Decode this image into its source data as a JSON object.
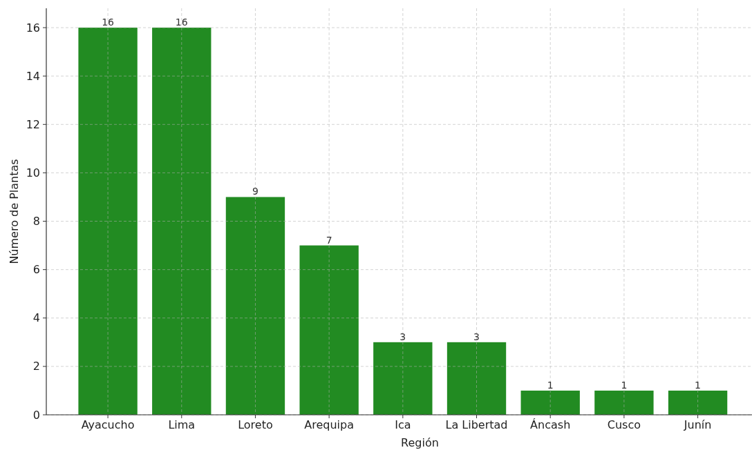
{
  "chart_data": {
    "type": "bar",
    "xlabel": "Región",
    "ylabel": "Número de Plantas",
    "categories": [
      "Ayacucho",
      "Lima",
      "Loreto",
      "Arequipa",
      "Ica",
      "La Libertad",
      "Áncash",
      "Cusco",
      "Junín"
    ],
    "values": [
      16,
      16,
      9,
      7,
      3,
      3,
      1,
      1,
      1
    ],
    "color": "#228b22",
    "ylim": [
      0,
      16.8
    ],
    "yticks": [
      0,
      2,
      4,
      6,
      8,
      10,
      12,
      14,
      16
    ],
    "grid": true,
    "data_labels": true
  }
}
